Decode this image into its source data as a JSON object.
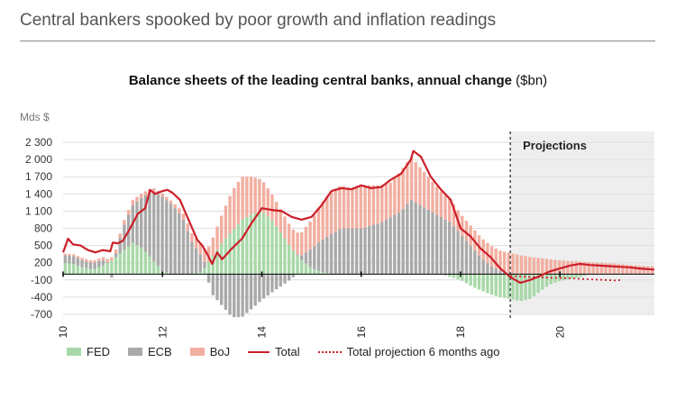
{
  "page_title": "Central bankers spooked by poor growth and inflation readings",
  "chart_title": "Balance sheets of the leading central banks, annual change",
  "chart_unit": "($bn)",
  "colors": {
    "fed": "#a8d8a8",
    "ecb": "#a9a9a9",
    "boj": "#f2aea0",
    "total": "#cc1f2a",
    "projection_bg": "#eeeeee",
    "grid": "#dddddd"
  },
  "chart_data": {
    "type": "bar",
    "stacked": true,
    "ylabel": "Mds $",
    "ylim": [
      -700,
      2600
    ],
    "yticks": [
      2300,
      2000,
      1700,
      1400,
      1100,
      800,
      500,
      200,
      -100,
      -400,
      -700
    ],
    "xlim": [
      2010.0,
      2021.9
    ],
    "xticks": [
      {
        "value": 2010,
        "label": "10"
      },
      {
        "value": 2012,
        "label": "12"
      },
      {
        "value": 2014,
        "label": "14"
      },
      {
        "value": 2016,
        "label": "16"
      },
      {
        "value": 2018,
        "label": "18"
      },
      {
        "value": 2020,
        "label": "20"
      }
    ],
    "projection_start": 2019.0,
    "projection_label": "Projections",
    "legend": [
      "FED",
      "ECB",
      "BoJ",
      "Total",
      "Total projection 6 months ago"
    ],
    "series": [
      {
        "name": "FED",
        "color_key": "fed",
        "points": [
          [
            2010.0,
            200
          ],
          [
            2010.2,
            180
          ],
          [
            2010.4,
            120
          ],
          [
            2010.6,
            80
          ],
          [
            2010.8,
            150
          ],
          [
            2011.0,
            250
          ],
          [
            2011.2,
            400
          ],
          [
            2011.4,
            550
          ],
          [
            2011.6,
            450
          ],
          [
            2011.8,
            250
          ],
          [
            2012.0,
            50
          ],
          [
            2012.2,
            0
          ],
          [
            2012.4,
            0
          ],
          [
            2012.6,
            0
          ],
          [
            2012.8,
            50
          ],
          [
            2013.0,
            300
          ],
          [
            2013.2,
            550
          ],
          [
            2013.4,
            750
          ],
          [
            2013.6,
            950
          ],
          [
            2013.8,
            1050
          ],
          [
            2014.0,
            1100
          ],
          [
            2014.2,
            950
          ],
          [
            2014.4,
            700
          ],
          [
            2014.6,
            450
          ],
          [
            2014.8,
            250
          ],
          [
            2015.0,
            100
          ],
          [
            2015.2,
            40
          ],
          [
            2015.4,
            0
          ],
          [
            2015.6,
            0
          ],
          [
            2015.8,
            0
          ],
          [
            2016.0,
            0
          ],
          [
            2016.2,
            0
          ],
          [
            2016.4,
            0
          ],
          [
            2016.6,
            0
          ],
          [
            2016.8,
            0
          ],
          [
            2017.0,
            0
          ],
          [
            2017.2,
            0
          ],
          [
            2017.4,
            0
          ],
          [
            2017.6,
            0
          ],
          [
            2017.8,
            -50
          ],
          [
            2018.0,
            -100
          ],
          [
            2018.2,
            -200
          ],
          [
            2018.4,
            -280
          ],
          [
            2018.6,
            -350
          ],
          [
            2018.8,
            -400
          ],
          [
            2019.0,
            -430
          ],
          [
            2019.2,
            -470
          ],
          [
            2019.4,
            -430
          ],
          [
            2019.6,
            -300
          ],
          [
            2019.8,
            -180
          ],
          [
            2020.0,
            -120
          ],
          [
            2020.2,
            -80
          ],
          [
            2020.4,
            -50
          ],
          [
            2020.6,
            0
          ],
          [
            2020.8,
            0
          ],
          [
            2021.0,
            0
          ],
          [
            2021.2,
            0
          ],
          [
            2021.4,
            0
          ],
          [
            2021.6,
            0
          ],
          [
            2021.8,
            0
          ]
        ]
      },
      {
        "name": "ECB",
        "color_key": "ecb",
        "points": [
          [
            2010.0,
            130
          ],
          [
            2010.2,
            140
          ],
          [
            2010.4,
            120
          ],
          [
            2010.6,
            110
          ],
          [
            2010.8,
            100
          ],
          [
            2011.0,
            -80
          ],
          [
            2011.2,
            400
          ],
          [
            2011.4,
            650
          ],
          [
            2011.6,
            900
          ],
          [
            2011.8,
            1200
          ],
          [
            2012.0,
            1300
          ],
          [
            2012.2,
            1200
          ],
          [
            2012.4,
            1000
          ],
          [
            2012.6,
            550
          ],
          [
            2012.8,
            250
          ],
          [
            2013.0,
            -350
          ],
          [
            2013.2,
            -550
          ],
          [
            2013.4,
            -750
          ],
          [
            2013.6,
            -750
          ],
          [
            2013.8,
            -600
          ],
          [
            2014.0,
            -450
          ],
          [
            2014.2,
            -320
          ],
          [
            2014.4,
            -200
          ],
          [
            2014.6,
            -80
          ],
          [
            2014.8,
            80
          ],
          [
            2015.0,
            350
          ],
          [
            2015.2,
            550
          ],
          [
            2015.4,
            700
          ],
          [
            2015.6,
            800
          ],
          [
            2015.8,
            800
          ],
          [
            2016.0,
            800
          ],
          [
            2016.2,
            850
          ],
          [
            2016.4,
            900
          ],
          [
            2016.6,
            1000
          ],
          [
            2016.8,
            1100
          ],
          [
            2017.0,
            1300
          ],
          [
            2017.2,
            1200
          ],
          [
            2017.4,
            1100
          ],
          [
            2017.6,
            1000
          ],
          [
            2017.8,
            900
          ],
          [
            2018.0,
            700
          ],
          [
            2018.2,
            500
          ],
          [
            2018.4,
            300
          ],
          [
            2018.6,
            150
          ],
          [
            2018.8,
            60
          ],
          [
            2019.0,
            20
          ],
          [
            2019.2,
            0
          ],
          [
            2019.4,
            0
          ],
          [
            2019.6,
            0
          ],
          [
            2019.8,
            0
          ],
          [
            2020.0,
            0
          ],
          [
            2020.2,
            0
          ],
          [
            2020.4,
            0
          ],
          [
            2020.6,
            0
          ],
          [
            2020.8,
            0
          ],
          [
            2021.0,
            0
          ],
          [
            2021.2,
            0
          ],
          [
            2021.4,
            0
          ],
          [
            2021.6,
            0
          ],
          [
            2021.8,
            0
          ]
        ]
      },
      {
        "name": "BoJ",
        "color_key": "boj",
        "points": [
          [
            2010.0,
            30
          ],
          [
            2010.2,
            30
          ],
          [
            2010.4,
            40
          ],
          [
            2010.6,
            40
          ],
          [
            2010.8,
            50
          ],
          [
            2011.0,
            60
          ],
          [
            2011.2,
            80
          ],
          [
            2011.4,
            90
          ],
          [
            2011.6,
            70
          ],
          [
            2011.8,
            60
          ],
          [
            2012.0,
            60
          ],
          [
            2012.2,
            60
          ],
          [
            2012.4,
            100
          ],
          [
            2012.6,
            150
          ],
          [
            2012.8,
            200
          ],
          [
            2013.0,
            300
          ],
          [
            2013.2,
            500
          ],
          [
            2013.4,
            700
          ],
          [
            2013.6,
            750
          ],
          [
            2013.8,
            650
          ],
          [
            2014.0,
            550
          ],
          [
            2014.2,
            450
          ],
          [
            2014.4,
            400
          ],
          [
            2014.6,
            350
          ],
          [
            2014.8,
            400
          ],
          [
            2015.0,
            500
          ],
          [
            2015.2,
            650
          ],
          [
            2015.4,
            750
          ],
          [
            2015.6,
            750
          ],
          [
            2015.8,
            700
          ],
          [
            2016.0,
            750
          ],
          [
            2016.2,
            700
          ],
          [
            2016.4,
            650
          ],
          [
            2016.6,
            600
          ],
          [
            2016.8,
            700
          ],
          [
            2017.0,
            750
          ],
          [
            2017.2,
            650
          ],
          [
            2017.4,
            550
          ],
          [
            2017.6,
            450
          ],
          [
            2017.8,
            400
          ],
          [
            2018.0,
            350
          ],
          [
            2018.2,
            350
          ],
          [
            2018.4,
            350
          ],
          [
            2018.6,
            350
          ],
          [
            2018.8,
            350
          ],
          [
            2019.0,
            350
          ],
          [
            2019.2,
            330
          ],
          [
            2019.4,
            300
          ],
          [
            2019.6,
            280
          ],
          [
            2019.8,
            260
          ],
          [
            2020.0,
            240
          ],
          [
            2020.2,
            230
          ],
          [
            2020.4,
            220
          ],
          [
            2020.6,
            210
          ],
          [
            2020.8,
            200
          ],
          [
            2021.0,
            190
          ],
          [
            2021.2,
            180
          ],
          [
            2021.4,
            160
          ],
          [
            2021.6,
            150
          ],
          [
            2021.8,
            140
          ]
        ]
      },
      {
        "name": "Total",
        "type": "line",
        "color_key": "total",
        "points": [
          [
            2010.0,
            380
          ],
          [
            2010.1,
            620
          ],
          [
            2010.2,
            520
          ],
          [
            2010.35,
            500
          ],
          [
            2010.5,
            420
          ],
          [
            2010.65,
            380
          ],
          [
            2010.8,
            420
          ],
          [
            2010.95,
            400
          ],
          [
            2011.0,
            550
          ],
          [
            2011.1,
            540
          ],
          [
            2011.2,
            580
          ],
          [
            2011.35,
            800
          ],
          [
            2011.5,
            1050
          ],
          [
            2011.65,
            1150
          ],
          [
            2011.75,
            1470
          ],
          [
            2011.85,
            1400
          ],
          [
            2012.0,
            1450
          ],
          [
            2012.1,
            1470
          ],
          [
            2012.2,
            1420
          ],
          [
            2012.35,
            1300
          ],
          [
            2012.5,
            1000
          ],
          [
            2012.6,
            800
          ],
          [
            2012.7,
            600
          ],
          [
            2012.8,
            500
          ],
          [
            2012.9,
            350
          ],
          [
            2013.0,
            180
          ],
          [
            2013.1,
            380
          ],
          [
            2013.2,
            260
          ],
          [
            2013.4,
            450
          ],
          [
            2013.6,
            620
          ],
          [
            2013.8,
            900
          ],
          [
            2014.0,
            1150
          ],
          [
            2014.2,
            1120
          ],
          [
            2014.4,
            1100
          ],
          [
            2014.6,
            1000
          ],
          [
            2014.8,
            950
          ],
          [
            2015.0,
            1000
          ],
          [
            2015.2,
            1200
          ],
          [
            2015.4,
            1450
          ],
          [
            2015.6,
            1500
          ],
          [
            2015.8,
            1480
          ],
          [
            2016.0,
            1550
          ],
          [
            2016.2,
            1500
          ],
          [
            2016.4,
            1520
          ],
          [
            2016.6,
            1650
          ],
          [
            2016.8,
            1750
          ],
          [
            2017.0,
            2000
          ],
          [
            2017.05,
            2150
          ],
          [
            2017.2,
            2050
          ],
          [
            2017.4,
            1700
          ],
          [
            2017.6,
            1480
          ],
          [
            2017.8,
            1300
          ],
          [
            2018.0,
            800
          ],
          [
            2018.2,
            660
          ],
          [
            2018.4,
            450
          ],
          [
            2018.6,
            300
          ],
          [
            2018.8,
            100
          ],
          [
            2019.0,
            -50
          ],
          [
            2019.2,
            -150
          ],
          [
            2019.4,
            -100
          ],
          [
            2019.6,
            -30
          ],
          [
            2019.8,
            50
          ],
          [
            2020.0,
            100
          ],
          [
            2020.2,
            150
          ],
          [
            2020.4,
            180
          ],
          [
            2020.6,
            160
          ],
          [
            2020.8,
            150
          ],
          [
            2021.0,
            140
          ],
          [
            2021.2,
            130
          ],
          [
            2021.4,
            120
          ],
          [
            2021.6,
            100
          ],
          [
            2021.9,
            80
          ]
        ]
      },
      {
        "name": "Total projection 6 months ago",
        "type": "dotted_line",
        "color_key": "total",
        "points": [
          [
            2019.0,
            -30
          ],
          [
            2019.4,
            -50
          ],
          [
            2019.8,
            -60
          ],
          [
            2020.2,
            -70
          ],
          [
            2020.6,
            -90
          ],
          [
            2020.9,
            -100
          ],
          [
            2021.1,
            -110
          ],
          [
            2021.25,
            -100
          ]
        ]
      }
    ]
  }
}
